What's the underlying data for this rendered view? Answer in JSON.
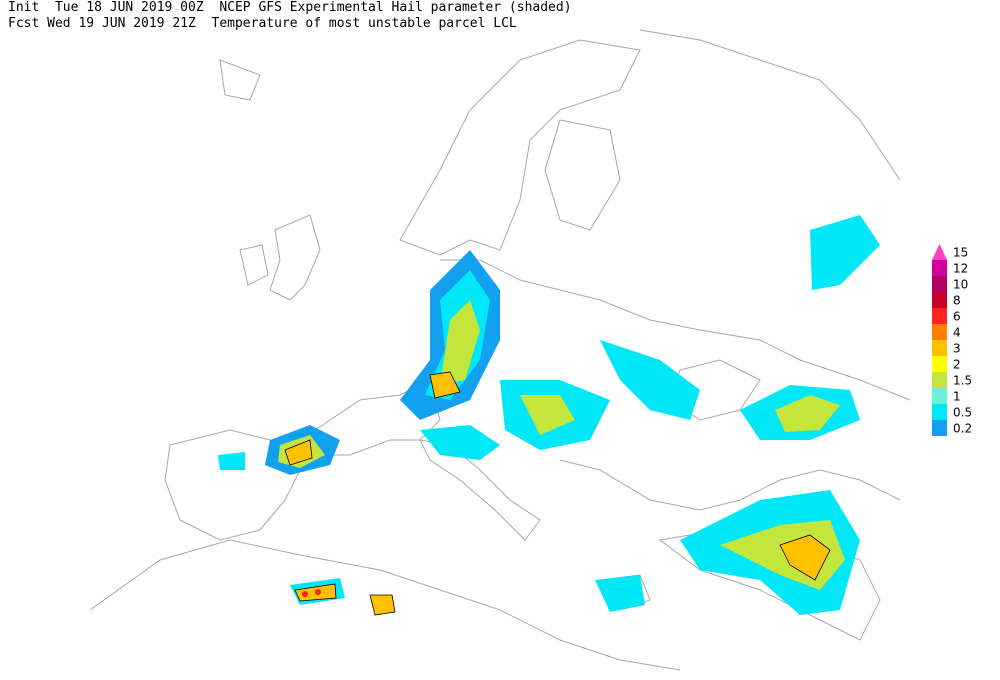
{
  "header": {
    "init": "Init  Tue 18 JUN 2019 00Z",
    "title": "NCEP GFS Experimental Hail parameter (shaded)",
    "fcst": "Fcst Wed 19 JUN 2019 21Z",
    "subtitle": "Temperature of most unstable parcel LCL"
  },
  "legend": {
    "levels": [
      {
        "label": "0.2",
        "color": "#12a0f0"
      },
      {
        "label": "0.5",
        "color": "#00e8f8"
      },
      {
        "label": "1",
        "color": "#6cf0d8"
      },
      {
        "label": "1.5",
        "color": "#c4e63c"
      },
      {
        "label": "2",
        "color": "#ffff00"
      },
      {
        "label": "3",
        "color": "#ffc000"
      },
      {
        "label": "4",
        "color": "#ff8000"
      },
      {
        "label": "6",
        "color": "#ff2020"
      },
      {
        "label": "8",
        "color": "#c80028"
      },
      {
        "label": "10",
        "color": "#b00060"
      },
      {
        "label": "12",
        "color": "#d000a0"
      },
      {
        "label": "15",
        "color": "#ff40c0"
      }
    ]
  }
}
